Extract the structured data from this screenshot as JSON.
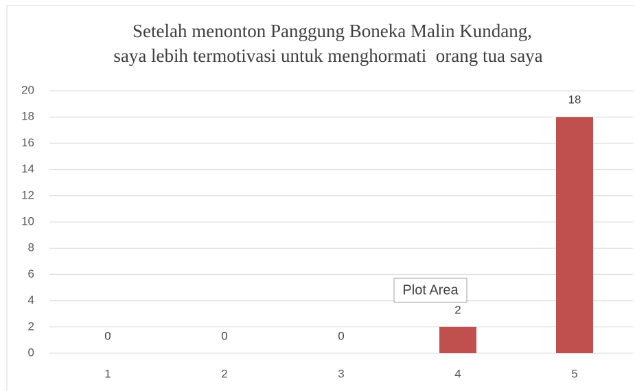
{
  "chart_data": {
    "type": "bar",
    "title": [
      "Setelah menonton Panggung Boneka Malin Kundang,",
      "saya lebih termotivasi untuk menghormati  orang tua saya"
    ],
    "categories": [
      "1",
      "2",
      "3",
      "4",
      "5"
    ],
    "values": [
      0,
      0,
      0,
      2,
      18
    ],
    "color": "#c0504d",
    "ylim": [
      0,
      20
    ],
    "yticks": [
      0,
      2,
      4,
      6,
      8,
      10,
      12,
      14,
      16,
      18,
      20
    ],
    "grid": true,
    "data_labels": true,
    "tooltip": "Plot Area"
  }
}
